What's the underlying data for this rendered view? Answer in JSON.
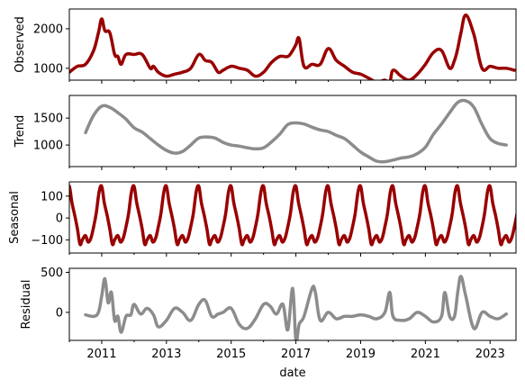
{
  "chart_data": {
    "type": "line",
    "xlabel": "date",
    "x_ticks": [
      "2011",
      "2013",
      "2015",
      "2017",
      "2019",
      "2021",
      "2023"
    ],
    "x_range": [
      2010.0,
      2023.8
    ],
    "colors": {
      "dark_red": "#990000",
      "gray": "#8c8c8c"
    },
    "panels": [
      {
        "id": "observed",
        "ylabel": "Observed",
        "color": "#990000",
        "ylim": [
          700,
          2500
        ],
        "y_ticks": [
          1000,
          2000
        ],
        "series": {
          "x": [
            2010.0,
            2010.25,
            2010.5,
            2010.75,
            2010.9,
            2011.0,
            2011.1,
            2011.25,
            2011.4,
            2011.5,
            2011.6,
            2011.75,
            2012.0,
            2012.25,
            2012.5,
            2012.6,
            2012.75,
            2013.0,
            2013.25,
            2013.5,
            2013.75,
            2014.0,
            2014.2,
            2014.4,
            2014.6,
            2014.75,
            2015.0,
            2015.25,
            2015.5,
            2015.75,
            2016.0,
            2016.25,
            2016.5,
            2016.75,
            2016.9,
            2017.0,
            2017.1,
            2017.25,
            2017.5,
            2017.75,
            2018.0,
            2018.25,
            2018.5,
            2018.75,
            2019.0,
            2019.25,
            2019.5,
            2019.75,
            2019.9,
            2020.0,
            2020.25,
            2020.5,
            2020.75,
            2021.0,
            2021.25,
            2021.5,
            2021.75,
            2021.9,
            2022.0,
            2022.1,
            2022.25,
            2022.5,
            2022.75,
            2023.0,
            2023.25,
            2023.5,
            2023.75
          ],
          "y": [
            900,
            1050,
            1100,
            1450,
            1900,
            2250,
            1950,
            1900,
            1350,
            1300,
            1100,
            1350,
            1350,
            1350,
            1000,
            1050,
            900,
            800,
            850,
            900,
            1000,
            1350,
            1200,
            1150,
            900,
            950,
            1050,
            1000,
            950,
            800,
            900,
            1150,
            1300,
            1300,
            1450,
            1600,
            1750,
            1050,
            1100,
            1100,
            1500,
            1200,
            1050,
            900,
            850,
            750,
            650,
            700,
            650,
            950,
            800,
            700,
            850,
            1100,
            1400,
            1450,
            1000,
            1200,
            1500,
            1900,
            2350,
            1850,
            1000,
            1050,
            1000,
            1000,
            950
          ]
        }
      },
      {
        "id": "trend",
        "ylabel": "Trend",
        "color": "#8c8c8c",
        "ylim": [
          600,
          1920
        ],
        "y_ticks": [
          1000,
          1500
        ],
        "series": {
          "x": [
            2010.5,
            2010.75,
            2011.0,
            2011.25,
            2011.5,
            2011.75,
            2012.0,
            2012.25,
            2012.5,
            2012.75,
            2013.0,
            2013.25,
            2013.5,
            2013.75,
            2014.0,
            2014.25,
            2014.5,
            2014.75,
            2015.0,
            2015.25,
            2015.5,
            2015.75,
            2016.0,
            2016.25,
            2016.5,
            2016.75,
            2017.0,
            2017.25,
            2017.5,
            2017.75,
            2018.0,
            2018.25,
            2018.5,
            2018.75,
            2019.0,
            2019.25,
            2019.5,
            2019.75,
            2020.0,
            2020.25,
            2020.5,
            2020.75,
            2021.0,
            2021.25,
            2021.5,
            2021.75,
            2022.0,
            2022.25,
            2022.5,
            2022.75,
            2023.0,
            2023.25,
            2023.5
          ],
          "y": [
            1230,
            1550,
            1720,
            1700,
            1600,
            1480,
            1320,
            1240,
            1120,
            1000,
            900,
            850,
            880,
            1000,
            1130,
            1150,
            1130,
            1050,
            1000,
            980,
            950,
            930,
            950,
            1060,
            1200,
            1380,
            1410,
            1390,
            1330,
            1280,
            1250,
            1180,
            1120,
            1000,
            870,
            780,
            700,
            690,
            720,
            760,
            780,
            840,
            960,
            1200,
            1390,
            1600,
            1790,
            1820,
            1700,
            1380,
            1120,
            1030,
            1000
          ]
        }
      },
      {
        "id": "seasonal",
        "ylabel": "Seasonal",
        "color": "#990000",
        "ylim": [
          -160,
          165
        ],
        "y_ticks": [
          -100,
          0,
          100
        ],
        "period_years": 1.0,
        "phase_peak": 0.0,
        "series": {
          "x": [
            0.0,
            0.08,
            0.17,
            0.25,
            0.33,
            0.4,
            0.5,
            0.58,
            0.67,
            0.75,
            0.83,
            0.92,
            1.0
          ],
          "y": [
            145,
            70,
            10,
            -50,
            -120,
            -100,
            -80,
            -110,
            -90,
            -40,
            20,
            120,
            145
          ]
        }
      },
      {
        "id": "residual",
        "ylabel": "Residual",
        "color": "#8c8c8c",
        "ylim": [
          -350,
          550
        ],
        "y_ticks": [
          0,
          500
        ],
        "series": {
          "x": [
            2010.5,
            2010.75,
            2010.9,
            2011.0,
            2011.1,
            2011.2,
            2011.3,
            2011.4,
            2011.5,
            2011.6,
            2011.75,
            2011.9,
            2012.0,
            2012.2,
            2012.4,
            2012.6,
            2012.75,
            2013.0,
            2013.25,
            2013.5,
            2013.75,
            2014.0,
            2014.2,
            2014.4,
            2014.6,
            2014.75,
            2015.0,
            2015.25,
            2015.5,
            2015.75,
            2016.0,
            2016.2,
            2016.4,
            2016.6,
            2016.75,
            2016.9,
            2017.0,
            2017.1,
            2017.25,
            2017.5,
            2017.6,
            2017.75,
            2018.0,
            2018.25,
            2018.5,
            2018.75,
            2019.0,
            2019.25,
            2019.5,
            2019.75,
            2019.9,
            2020.0,
            2020.25,
            2020.5,
            2020.75,
            2021.0,
            2021.25,
            2021.5,
            2021.6,
            2021.75,
            2021.9,
            2022.0,
            2022.1,
            2022.25,
            2022.5,
            2022.75,
            2023.0,
            2023.25,
            2023.5
          ],
          "y": [
            -30,
            -50,
            0,
            200,
            420,
            120,
            250,
            -100,
            -50,
            -250,
            -50,
            -30,
            100,
            -20,
            50,
            -30,
            -180,
            -100,
            50,
            0,
            -100,
            100,
            150,
            -50,
            -20,
            0,
            50,
            -150,
            -200,
            -80,
            100,
            80,
            -20,
            100,
            -220,
            300,
            -350,
            -150,
            -50,
            300,
            250,
            -100,
            0,
            -80,
            -50,
            -50,
            -30,
            -50,
            -80,
            0,
            250,
            -50,
            -100,
            -80,
            0,
            -50,
            -120,
            -50,
            250,
            -50,
            -50,
            250,
            450,
            200,
            -200,
            0,
            -50,
            -80,
            -20
          ]
        }
      }
    ]
  }
}
